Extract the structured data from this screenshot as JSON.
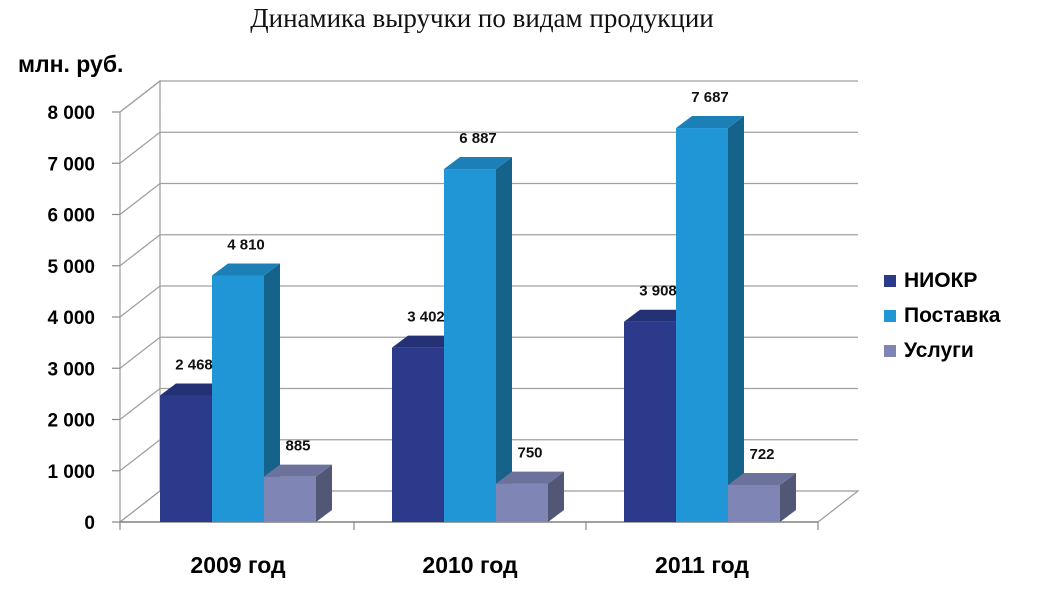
{
  "chart_data": {
    "type": "bar",
    "title": "Динамика выручки по видам продукции",
    "ylabel": "млн. руб.",
    "xlabel": "",
    "categories": [
      "2009 год",
      "2010 год",
      "2011 год"
    ],
    "series": [
      {
        "name": "НИОКР",
        "values": [
          2468,
          3402,
          3908
        ],
        "labels": [
          "2 468",
          "3 402",
          "3 908"
        ],
        "color": "#2b3a8a"
      },
      {
        "name": "Поставка",
        "values": [
          4810,
          6887,
          7687
        ],
        "labels": [
          "4 810",
          "6 887",
          "7 687"
        ],
        "color": "#2196d6"
      },
      {
        "name": "Услуги",
        "values": [
          885,
          750,
          722
        ],
        "labels": [
          "885",
          "750",
          "722"
        ],
        "color": "#7f86b6"
      }
    ],
    "ylim": [
      0,
      8000
    ],
    "yticks": [
      0,
      1000,
      2000,
      3000,
      4000,
      5000,
      6000,
      7000,
      8000
    ],
    "ytick_labels": [
      "0",
      "1 000",
      "2 000",
      "3 000",
      "4 000",
      "5 000",
      "6 000",
      "7 000",
      "8 000"
    ],
    "grid": true,
    "style": "3d-clustered-column",
    "legend_position": "right"
  }
}
